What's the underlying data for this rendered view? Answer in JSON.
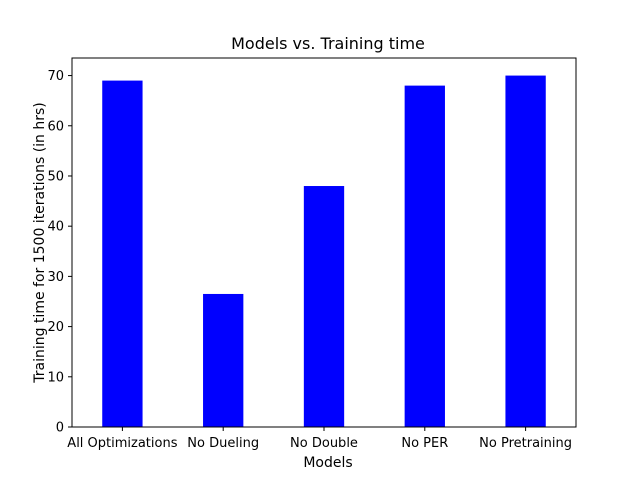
{
  "chart_data": {
    "type": "bar",
    "title": "Models vs. Training time",
    "xlabel": "Models",
    "ylabel": "Training time for 1500 iterations (in hrs)",
    "categories": [
      "All Optimizations",
      "No Dueling",
      "No Double",
      "No PER",
      "No Pretraining"
    ],
    "values": [
      69,
      26.5,
      48,
      68,
      70
    ],
    "ylim": [
      0,
      73.5
    ],
    "yticks": [
      "0",
      "10",
      "20",
      "30",
      "40",
      "50",
      "60",
      "70"
    ],
    "bar_color": "#0000ff",
    "grid": false
  }
}
